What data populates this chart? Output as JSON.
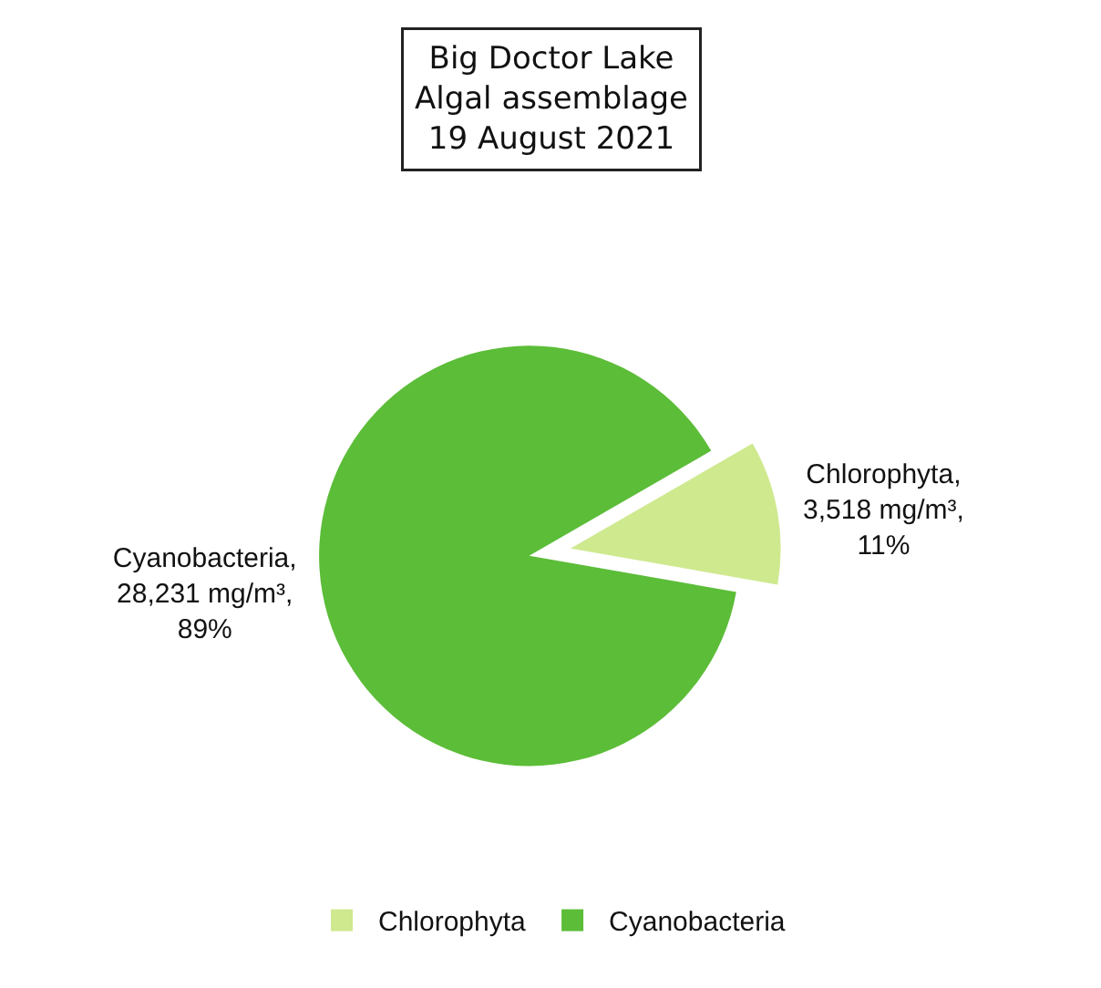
{
  "chart_data": {
    "type": "pie",
    "title": "Big Doctor Lake\nAlgal assemblage\n19 August 2021",
    "categories": [
      "Chlorophyta",
      "Cyanobacteria"
    ],
    "values": [
      3518,
      28231
    ],
    "colors": [
      "#cfe98f",
      "#5cbd38"
    ],
    "value_labels": [
      "Chlorophyta,\n3,518 mg/m³,\n11%",
      "Cyanobacteria,\n28,231 mg/m³,\n89%"
    ],
    "legend": "bottom"
  }
}
